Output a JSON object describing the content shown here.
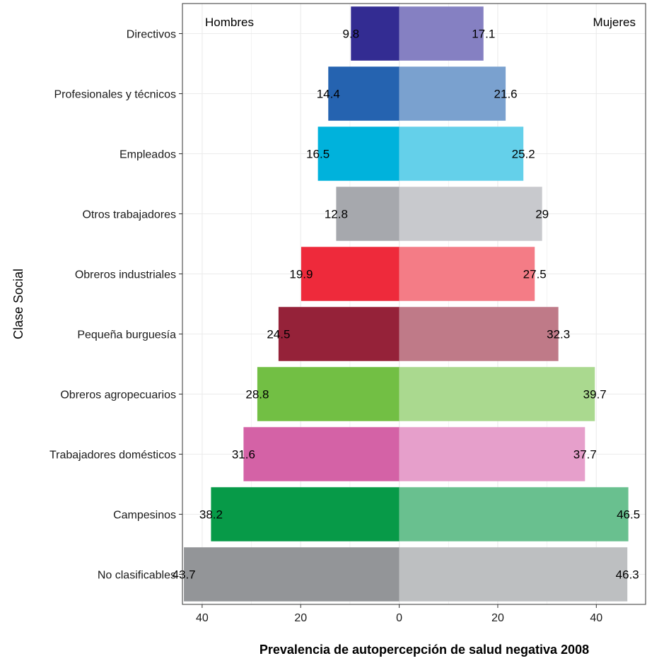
{
  "chart_data": {
    "type": "bar",
    "orientation": "horizontal-diverging",
    "categories": [
      "Directivos",
      "Profesionales y técnicos",
      "Empleados",
      "Otros trabajadores",
      "Obreros industriales",
      "Pequeña burguesía",
      "Obreros agropecuarios",
      "Trabajadores domésticos",
      "Campesinos",
      "No clasificables"
    ],
    "series": [
      {
        "name": "Hombres",
        "side": "left",
        "values": [
          9.8,
          14.4,
          16.5,
          12.8,
          19.9,
          24.5,
          28.8,
          31.6,
          38.2,
          43.7
        ],
        "labels": [
          "9.8",
          "14.4",
          "16.5",
          "12.8",
          "19.9",
          "24.5",
          "28.8",
          "31.6",
          "38.2",
          "43.7"
        ]
      },
      {
        "name": "Mujeres",
        "side": "right",
        "values": [
          17.1,
          21.6,
          25.2,
          29,
          27.5,
          32.3,
          39.7,
          37.7,
          46.5,
          46.3
        ],
        "labels": [
          "17.1",
          "21.6",
          "25.2",
          "29",
          "27.5",
          "32.3",
          "39.7",
          "37.7",
          "46.5",
          "46.3"
        ]
      }
    ],
    "colors": {
      "Hombres": [
        "#332c92",
        "#2563b0",
        "#00b2dc",
        "#a6a8ad",
        "#ee2a3b",
        "#952239",
        "#72bf44",
        "#d462a6",
        "#079a48",
        "#939598"
      ],
      "Mujeres": [
        "#8580c2",
        "#7aa1cf",
        "#64d0ea",
        "#c8c9cd",
        "#f47c86",
        "#bf7a88",
        "#aad98f",
        "#e69fcb",
        "#69c08f",
        "#bdbfc1"
      ]
    },
    "xlabel": "Prevalencia de  autopercepción de salud negativa  2008",
    "ylabel": "Clase Social",
    "x_ticks": [
      {
        "value": -40,
        "label": "40"
      },
      {
        "value": -20,
        "label": "20"
      },
      {
        "value": 0,
        "label": "0"
      },
      {
        "value": 20,
        "label": "20"
      },
      {
        "value": 40,
        "label": "40"
      }
    ],
    "xlim": [
      -44,
      50
    ],
    "grid": true,
    "legend_placement": "top-corners"
  }
}
